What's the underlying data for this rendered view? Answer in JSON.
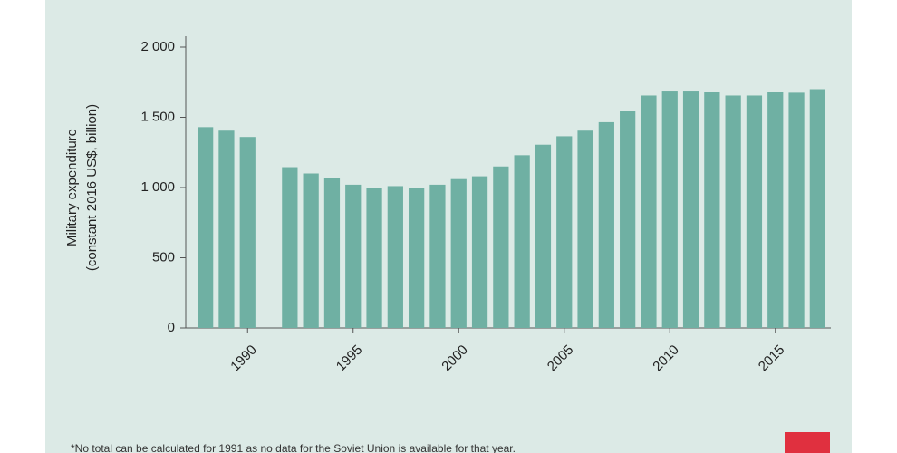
{
  "chart_data": {
    "type": "bar",
    "ylabel": [
      "Military expenditure",
      "(constant 2016 US$, billion)"
    ],
    "x": [
      1988,
      1989,
      1990,
      1991,
      1992,
      1993,
      1994,
      1995,
      1996,
      1997,
      1998,
      1999,
      2000,
      2001,
      2002,
      2003,
      2004,
      2005,
      2006,
      2007,
      2008,
      2009,
      2010,
      2011,
      2012,
      2013,
      2014,
      2015,
      2016,
      2017
    ],
    "values": [
      1430,
      1405,
      1360,
      null,
      1145,
      1100,
      1065,
      1020,
      995,
      1010,
      1000,
      1020,
      1060,
      1080,
      1150,
      1230,
      1305,
      1365,
      1405,
      1465,
      1545,
      1655,
      1690,
      1690,
      1680,
      1655,
      1655,
      1680,
      1675,
      1700
    ],
    "color": "#6fb0a3",
    "xlim": [
      1987.5,
      2017.5
    ],
    "xticks": [
      1990,
      1995,
      2000,
      2005,
      2010,
      2015
    ],
    "ylim": [
      0,
      2000
    ],
    "yticks": [
      0,
      500,
      {
        "value": 1000,
        "label": "1 000"
      },
      {
        "value": 1500,
        "label": "1 500"
      },
      {
        "value": 2000,
        "label": "2 000"
      }
    ],
    "footnote": "*No total can be calculated for 1991 as no data for the Soviet Union is available for that year."
  }
}
